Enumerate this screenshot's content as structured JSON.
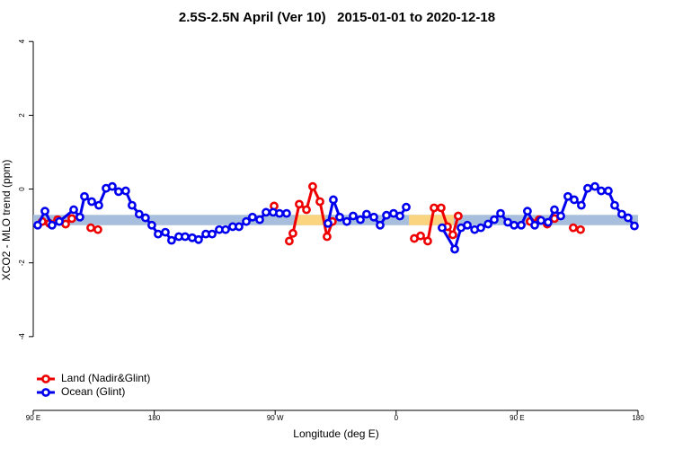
{
  "chart_data": {
    "type": "line",
    "title": "2.5S-2.5N April (Ver 10)   2015-01-01 to 2020-12-18",
    "x_label": "Longitude (deg E)",
    "y_label": "XCO2 - MLO trend (ppm)",
    "xlim": [
      90,
      540
    ],
    "ylim": [
      -6,
      4.2
    ],
    "xticks": [
      {
        "value": 90,
        "label": "90 E"
      },
      180,
      {
        "value": 270,
        "label": "90 W"
      },
      {
        "value": 360,
        "label": "0"
      },
      {
        "value": 450,
        "label": "90 E"
      },
      {
        "value": 540,
        "label": "180"
      }
    ],
    "yticks": [
      4,
      2,
      0,
      -2,
      -4
    ],
    "legend": "bottom-left",
    "bands": [
      {
        "color": "#a7bfdc",
        "xlim": [
          90,
          540
        ],
        "ylim": [
          -0.98,
          -0.7
        ]
      },
      {
        "color": "#fbd47f",
        "xlim": [
          285.9,
          307.3
        ],
        "ylim": [
          -0.98,
          -0.7
        ]
      },
      {
        "color": "#fbd47f",
        "xlim": [
          369.5,
          402.9
        ],
        "ylim": [
          -0.98,
          -0.7
        ]
      }
    ],
    "series": [
      {
        "name": "Land (Nadir&Glint)",
        "color": "#ee0000",
        "x": [
          96.7,
          102.0,
          108.1,
          114.1,
          118.7,
          null,
          132.8,
          138.1,
          null,
          269.2,
          null,
          280.5,
          283.2,
          287.9,
          293.3,
          297.9,
          303.3,
          308.6,
          312.6,
          null,
          373.5,
          378.2,
          383.5,
          388.2,
          393.5,
          398.2,
          402.2,
          406.2,
          null,
          459.7,
          466.4,
          472.4,
          477.8,
          null,
          491.8,
          497.2
        ],
        "values": [
          -0.88,
          -0.93,
          -0.83,
          -0.95,
          -0.8,
          null,
          -1.05,
          -1.1,
          null,
          -0.46,
          null,
          -1.41,
          -1.2,
          -0.41,
          -0.56,
          0.07,
          -0.34,
          -1.29,
          -0.88,
          null,
          -1.34,
          -1.27,
          -1.41,
          -0.51,
          -0.51,
          -1.02,
          -1.24,
          -0.73,
          null,
          -0.88,
          -0.83,
          -0.95,
          -0.8,
          null,
          -1.05,
          -1.1
        ]
      },
      {
        "name": "Ocean (Glint)",
        "color": "#0000ee",
        "x": [
          93.3,
          98.7,
          104.0,
          109.4,
          120.1,
          124.7,
          128.1,
          133.5,
          138.8,
          144.2,
          148.8,
          153.5,
          158.8,
          163.5,
          168.8,
          173.5,
          178.2,
          182.9,
          188.3,
          192.9,
          198.3,
          203.0,
          208.3,
          213.0,
          218.4,
          223.1,
          228.4,
          233.1,
          238.4,
          243.1,
          248.5,
          253.1,
          258.5,
          263.2,
          268.5,
          273.2,
          278.5,
          null,
          309.3,
          313.3,
          318.0,
          323.3,
          328.0,
          333.4,
          338.0,
          343.4,
          348.1,
          352.8,
          358.1,
          362.8,
          367.5,
          null,
          394.2,
          403.6,
          408.3,
          413.0,
          418.4,
          423.0,
          428.4,
          433.0,
          437.7,
          443.1,
          447.8,
          453.1,
          457.7,
          463.1,
          467.8,
          473.1,
          477.8,
          482.5,
          487.8,
          492.5,
          497.8,
          502.5,
          507.9,
          512.6,
          517.9,
          522.6,
          527.9,
          532.6,
          537.3
        ],
        "values": [
          -0.98,
          -0.6,
          -0.98,
          -0.88,
          -0.56,
          -0.76,
          -0.2,
          -0.34,
          -0.44,
          0.02,
          0.07,
          -0.07,
          -0.05,
          -0.44,
          -0.68,
          -0.78,
          -0.98,
          -1.22,
          -1.17,
          -1.39,
          -1.29,
          -1.29,
          -1.32,
          -1.37,
          -1.22,
          -1.22,
          -1.1,
          -1.1,
          -1.02,
          -1.02,
          -0.88,
          -0.76,
          -0.83,
          -0.63,
          -0.63,
          -0.66,
          -0.66,
          null,
          -0.93,
          -0.29,
          -0.76,
          -0.88,
          -0.73,
          -0.83,
          -0.68,
          -0.76,
          -0.98,
          -0.71,
          -0.66,
          -0.73,
          -0.49,
          null,
          -1.05,
          -1.63,
          -1.05,
          -0.98,
          -1.1,
          -1.05,
          -0.95,
          -0.83,
          -0.66,
          -0.9,
          -0.98,
          -0.98,
          -0.6,
          -0.98,
          -0.85,
          -0.9,
          -0.56,
          -0.73,
          -0.2,
          -0.29,
          -0.44,
          0.02,
          0.07,
          -0.05,
          -0.05,
          -0.44,
          -0.68,
          -0.78,
          -1.0
        ]
      }
    ]
  }
}
